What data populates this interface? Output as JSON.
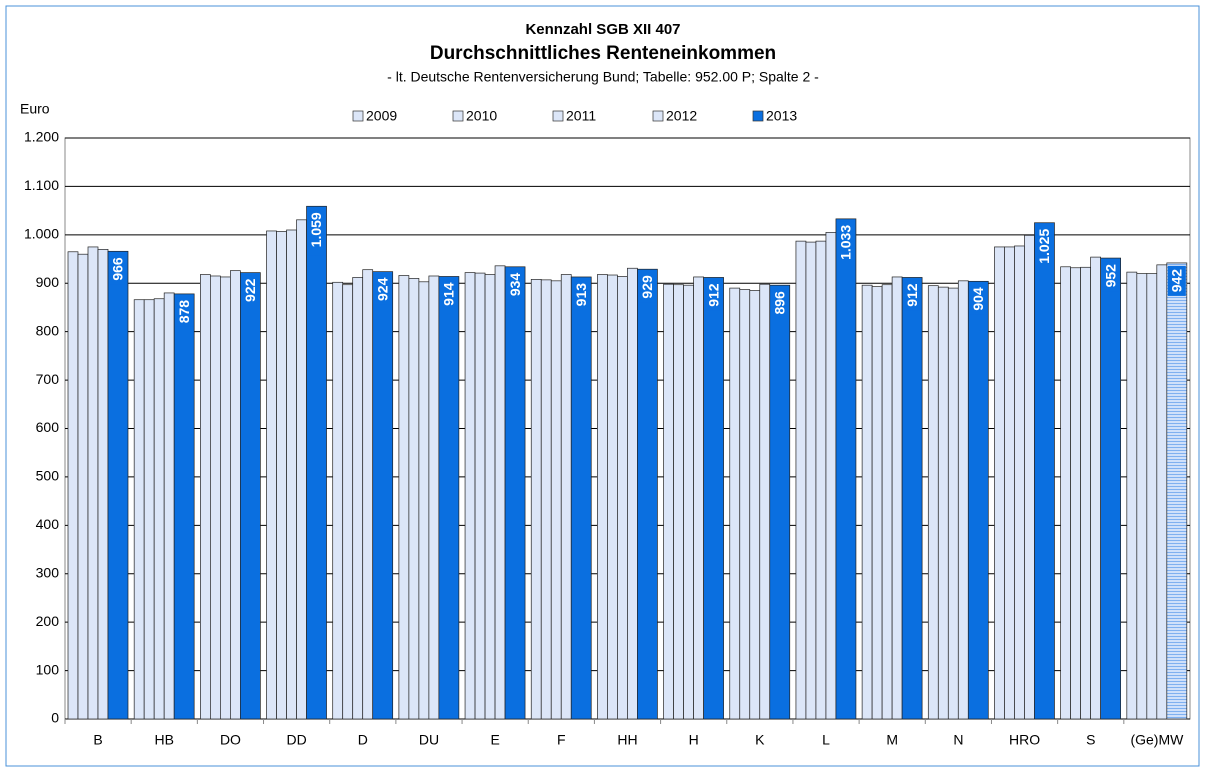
{
  "chart_data": {
    "type": "bar",
    "title": "Kennzahl SGB XII 407",
    "subtitle": "Durchschnittliches Renteneinkommen",
    "note": "- lt. Deutsche Rentenversicherung Bund; Tabelle: 952.00 P; Spalte 2 -",
    "y_label": "Euro",
    "categories": [
      "B",
      "HB",
      "DO",
      "DD",
      "D",
      "DU",
      "E",
      "F",
      "HH",
      "H",
      "K",
      "L",
      "M",
      "N",
      "HRO",
      "S",
      "(Ge)MW"
    ],
    "series": [
      {
        "name": "2009",
        "color": "#dce6f8",
        "values": [
          965,
          866,
          918,
          1008,
          902,
          916,
          922,
          908,
          918,
          898,
          890,
          987,
          896,
          895,
          975,
          934,
          923
        ]
      },
      {
        "name": "2010",
        "color": "#dce6f8",
        "values": [
          960,
          866,
          915,
          1007,
          897,
          910,
          921,
          907,
          917,
          897,
          887,
          985,
          893,
          892,
          975,
          932,
          920
        ]
      },
      {
        "name": "2011",
        "color": "#dce6f8",
        "values": [
          975,
          868,
          913,
          1010,
          912,
          903,
          918,
          905,
          914,
          896,
          885,
          987,
          897,
          890,
          977,
          933,
          920
        ]
      },
      {
        "name": "2012",
        "color": "#dce6f8",
        "values": [
          970,
          880,
          926,
          1031,
          928,
          915,
          936,
          918,
          931,
          913,
          898,
          1005,
          913,
          905,
          999,
          954,
          938
        ]
      },
      {
        "name": "2013",
        "color": "#0a6fe0",
        "values": [
          966,
          878,
          922,
          1059,
          924,
          914,
          934,
          913,
          929,
          912,
          896,
          1033,
          912,
          904,
          1025,
          952,
          942
        ],
        "value_labels": [
          "966",
          "878",
          "922",
          "1.059",
          "924",
          "914",
          "934",
          "913",
          "929",
          "912",
          "896",
          "1.033",
          "912",
          "904",
          "1.025",
          "952",
          "942"
        ]
      }
    ],
    "ylim": [
      0,
      1200
    ],
    "yticks": [
      0,
      100,
      200,
      300,
      400,
      500,
      600,
      700,
      800,
      900,
      {
        "value": 1000,
        "label": "1.000"
      },
      {
        "value": 1100,
        "label": "1.100"
      },
      {
        "value": 1200,
        "label": "1.200"
      }
    ],
    "grid": true
  }
}
